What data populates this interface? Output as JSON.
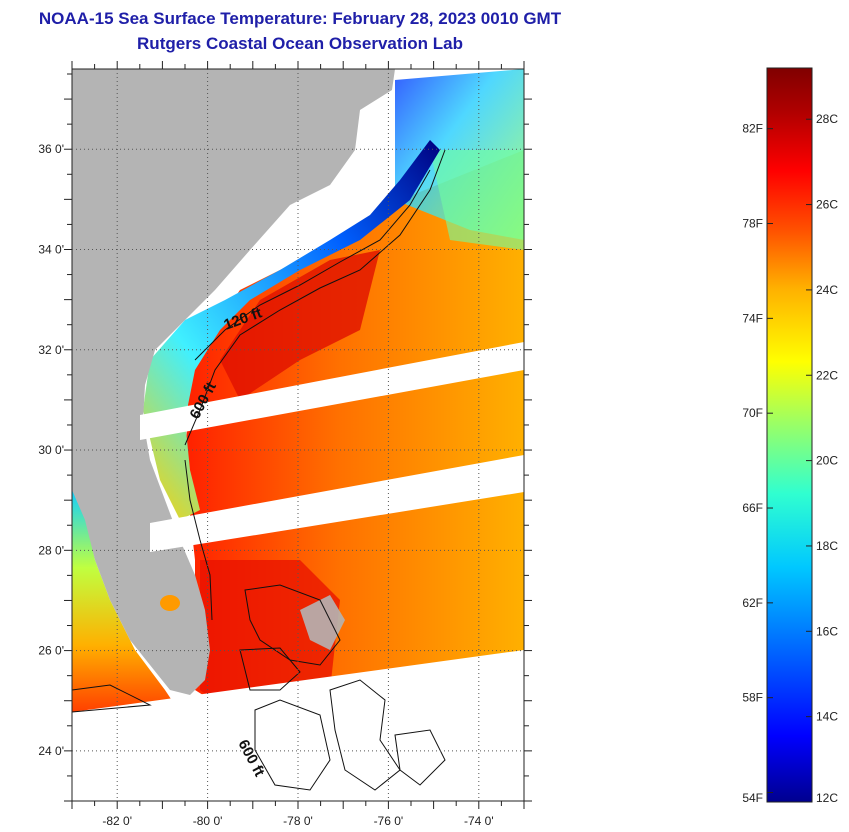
{
  "title": "NOAA-15 Sea Surface Temperature:  February 28, 2023 0010 GMT",
  "subtitle": "Rutgers Coastal Ocean Observation Lab",
  "map": {
    "lat_labels": [
      "36 0'",
      "34 0'",
      "32 0'",
      "30 0'",
      "28 0'",
      "26 0'",
      "24 0'"
    ],
    "lat_values": [
      36,
      34,
      32,
      30,
      28,
      26,
      24
    ],
    "lon_labels": [
      "-82 0'",
      "-80 0'",
      "-78 0'",
      "-76 0'",
      "-74 0'"
    ],
    "lon_values": [
      -82,
      -80,
      -78,
      -76,
      -74
    ],
    "lat_range": [
      23,
      37.6
    ],
    "lon_range": [
      -83,
      -73
    ],
    "contour_labels": [
      "120 ft",
      "600 ft",
      "600 ft"
    ],
    "colors": {
      "land": "#b4b4b4",
      "background": "#ffffff"
    }
  },
  "colorbar": {
    "fahrenheit_labels": [
      "82F",
      "78F",
      "74F",
      "70F",
      "66F",
      "62F",
      "58F",
      "54F"
    ],
    "celsius_labels": [
      "28C",
      "26C",
      "24C",
      "22C",
      "20C",
      "18C",
      "16C",
      "14C",
      "12C"
    ],
    "range_c": [
      12,
      29.2
    ],
    "colors": [
      "#00008f",
      "#0000ff",
      "#0060ff",
      "#00c8ff",
      "#30ffd0",
      "#a0ff60",
      "#ffff00",
      "#ffb000",
      "#ff5000",
      "#ff0000",
      "#b00000",
      "#800000"
    ]
  }
}
